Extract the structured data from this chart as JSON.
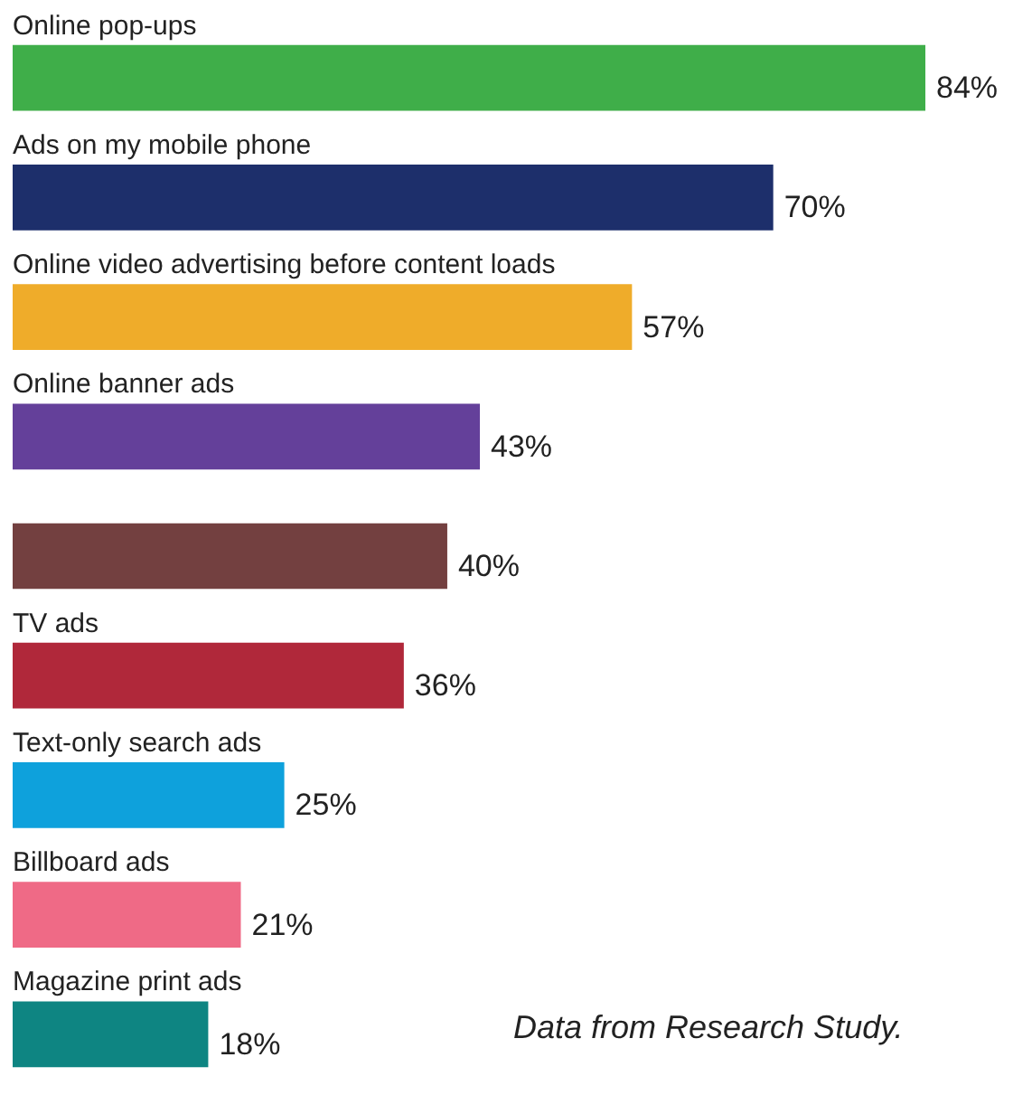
{
  "chart_data": {
    "type": "bar",
    "orientation": "horizontal",
    "categories": [
      "Online pop-ups",
      "Ads on my mobile phone",
      "Online video advertising before content loads",
      "Online banner ads",
      null,
      "TV ads",
      "Text-only search ads",
      "Billboard ads",
      "Magazine print ads"
    ],
    "values": [
      84,
      70,
      57,
      43,
      40,
      36,
      25,
      21,
      18
    ],
    "value_labels": [
      "84%",
      "70%",
      "57%",
      "43%",
      "40%",
      "36%",
      "25%",
      "21%",
      "18%"
    ],
    "colors": [
      "#3fae49",
      "#1d2f6b",
      "#efac2a",
      "#64409a",
      "#734040",
      "#b0283a",
      "#0ea1dc",
      "#ef6a86",
      "#0e8582"
    ],
    "annotations": [
      "Data from Research Study."
    ]
  }
}
